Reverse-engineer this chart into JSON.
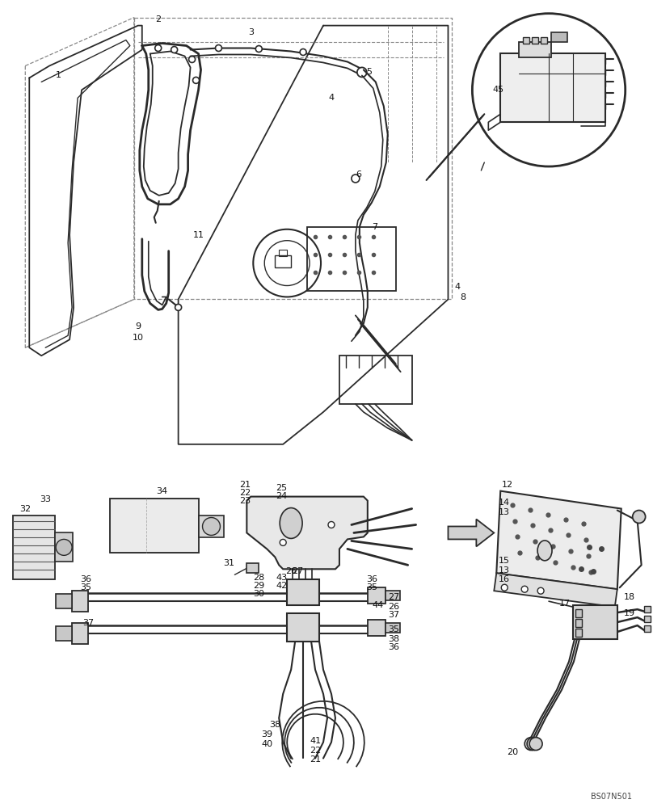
{
  "bg": "#ffffff",
  "watermark": "BS07N501",
  "line_color": "#2a2a2a",
  "dash_color": "#888888",
  "light_fill": "#e8e8e8",
  "mid_fill": "#d0d0d0"
}
